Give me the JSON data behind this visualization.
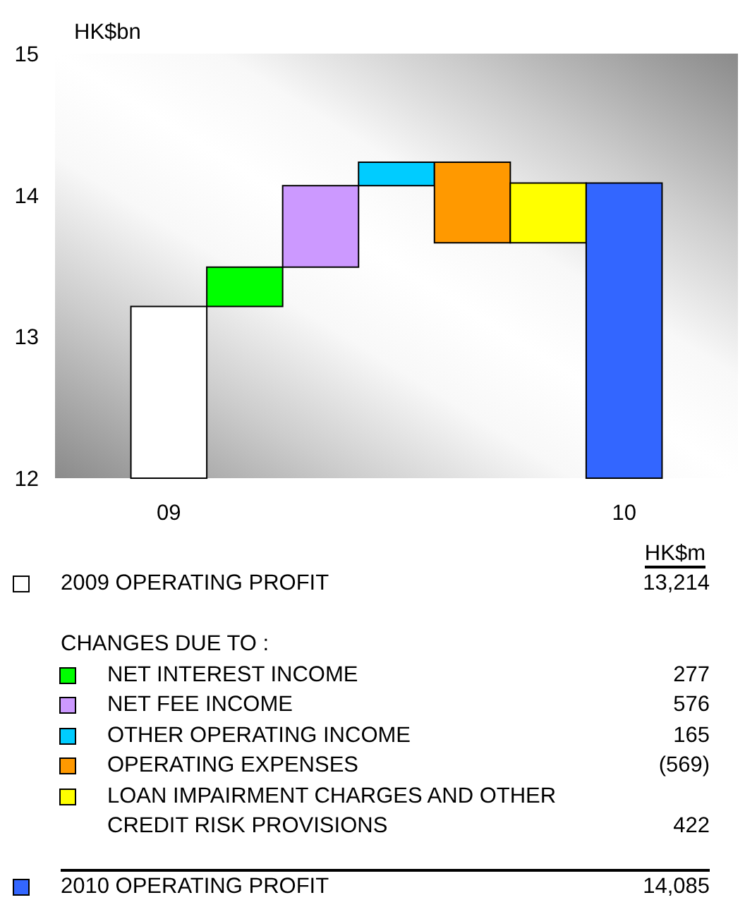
{
  "chart_data": {
    "type": "bar",
    "ylabel": "HK$bn",
    "categories": [
      "09",
      null,
      null,
      null,
      null,
      null,
      "10"
    ],
    "series": [
      {
        "name": "2009 OPERATING PROFIT",
        "color": "#ffffff",
        "values": [
          13.214,
          null,
          null,
          null,
          null,
          null,
          null
        ]
      },
      {
        "name": "NET INTEREST INCOME",
        "color": "#00ff00",
        "values": [
          null,
          0.277,
          null,
          null,
          null,
          null,
          null
        ],
        "base": [
          null,
          13.214,
          null,
          null,
          null,
          null,
          null
        ]
      },
      {
        "name": "NET FEE INCOME",
        "color": "#cc99ff",
        "values": [
          null,
          null,
          0.576,
          null,
          null,
          null,
          null
        ],
        "base": [
          null,
          null,
          13.491,
          null,
          null,
          null,
          null
        ]
      },
      {
        "name": "OTHER OPERATING INCOME",
        "color": "#00ccff",
        "values": [
          null,
          null,
          null,
          0.165,
          null,
          null,
          null
        ],
        "base": [
          null,
          null,
          null,
          14.067,
          null,
          null,
          null
        ]
      },
      {
        "name": "OPERATING EXPENSES",
        "color": "#ff9900",
        "values": [
          null,
          null,
          null,
          null,
          -0.569,
          null,
          null
        ],
        "base": [
          null,
          null,
          null,
          null,
          14.232,
          null,
          null
        ]
      },
      {
        "name": "LOAN IMPAIRMENT CHARGES AND OTHER CREDIT RISK PROVISIONS",
        "color": "#ffff00",
        "values": [
          null,
          null,
          null,
          null,
          null,
          0.422,
          null
        ],
        "base": [
          null,
          null,
          null,
          null,
          null,
          13.663,
          null
        ]
      },
      {
        "name": "2010 OPERATING PROFIT",
        "color": "#3366ff",
        "values": [
          null,
          null,
          null,
          null,
          null,
          null,
          14.085
        ]
      }
    ],
    "ylim": [
      12,
      15
    ],
    "yticks": [
      12,
      13,
      14,
      15
    ],
    "legend": "bottom",
    "annotations": [
      "HK$m",
      "CHANGES DUE TO :",
      "13,214",
      "277",
      "576",
      "165",
      "(569)",
      "422",
      "14,085"
    ]
  }
}
